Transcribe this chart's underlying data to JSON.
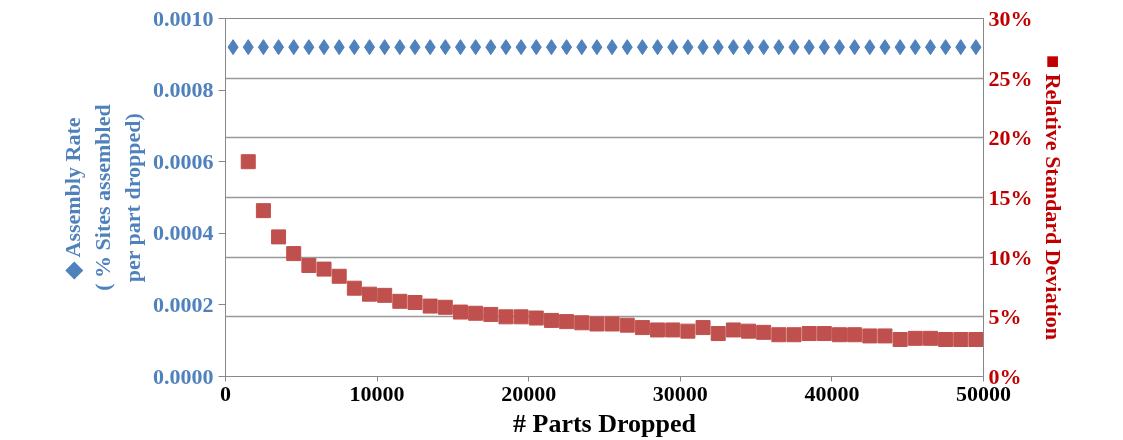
{
  "chart_data": {
    "type": "scatter",
    "xlabel": "# Parts Dropped",
    "ylabel": "◆ Assembly Rate\n( % Sites assembled\nper part dropped)",
    "y2label": "■ Relative Standard Deviation",
    "xlim": [
      0,
      50000
    ],
    "xticks": [
      0,
      10000,
      20000,
      30000,
      40000,
      50000
    ],
    "ylim": [
      0,
      0.001
    ],
    "yticks": [
      {
        "value": 0,
        "label": "0.0000"
      },
      {
        "value": 0.0002,
        "label": "0.0002"
      },
      {
        "value": 0.0004,
        "label": "0.0004"
      },
      {
        "value": 0.0006,
        "label": "0.0006"
      },
      {
        "value": 0.0008,
        "label": "0.0008"
      },
      {
        "value": 0.001,
        "label": "0.0010"
      }
    ],
    "y2lim": [
      0,
      30
    ],
    "y2ticks": [
      {
        "value": 0,
        "label": "0%"
      },
      {
        "value": 5,
        "label": "5%"
      },
      {
        "value": 10,
        "label": "10%"
      },
      {
        "value": 15,
        "label": "15%"
      },
      {
        "value": 20,
        "label": "20%"
      },
      {
        "value": 25,
        "label": "25%"
      },
      {
        "value": 30,
        "label": "30%"
      }
    ],
    "grid": "y2",
    "series": [
      {
        "color": "#4f81bd",
        "marker": "diamond",
        "x": [
          500,
          1500,
          2500,
          3500,
          4500,
          5500,
          6500,
          7500,
          8500,
          9500,
          10500,
          11500,
          12500,
          13500,
          14500,
          15500,
          16500,
          17500,
          18500,
          19500,
          20500,
          21500,
          22500,
          23500,
          24500,
          25500,
          26500,
          27500,
          28500,
          29500,
          30500,
          31500,
          32500,
          33500,
          34500,
          35500,
          36500,
          37500,
          38500,
          39500,
          40500,
          41500,
          42500,
          43500,
          44500,
          45500,
          46500,
          47500,
          48500,
          49500
        ],
        "values": [
          0.00092,
          0.00092,
          0.00092,
          0.00092,
          0.00092,
          0.00092,
          0.00092,
          0.00092,
          0.00092,
          0.00092,
          0.00092,
          0.00092,
          0.00092,
          0.00092,
          0.00092,
          0.00092,
          0.00092,
          0.00092,
          0.00092,
          0.00092,
          0.00092,
          0.00092,
          0.00092,
          0.00092,
          0.00092,
          0.00092,
          0.00092,
          0.00092,
          0.00092,
          0.00092,
          0.00092,
          0.00092,
          0.00092,
          0.00092,
          0.00092,
          0.00092,
          0.00092,
          0.00092,
          0.00092,
          0.00092,
          0.00092,
          0.00092,
          0.00092,
          0.00092,
          0.00092,
          0.00092,
          0.00092,
          0.00092,
          0.00092,
          0.00092
        ]
      },
      {
        "color": "#c0504d",
        "marker": "square",
        "axis": "y2",
        "x": [
          1500,
          2500,
          3500,
          4500,
          5500,
          6500,
          7500,
          8500,
          9500,
          10500,
          11500,
          12500,
          13500,
          14500,
          15500,
          16500,
          17500,
          18500,
          19500,
          20500,
          21500,
          22500,
          23500,
          24500,
          25500,
          26500,
          27500,
          28500,
          29500,
          30500,
          31500,
          32500,
          33500,
          34500,
          35500,
          36500,
          37500,
          38500,
          39500,
          40500,
          41500,
          42500,
          43500,
          44500,
          45500,
          46500,
          47500,
          48500,
          49500
        ],
        "values": [
          18.0,
          13.9,
          11.7,
          10.3,
          9.3,
          9.0,
          8.4,
          7.4,
          6.9,
          6.8,
          6.3,
          6.2,
          5.9,
          5.8,
          5.4,
          5.3,
          5.2,
          5.0,
          5.0,
          4.9,
          4.7,
          4.6,
          4.5,
          4.4,
          4.4,
          4.3,
          4.1,
          3.9,
          3.9,
          3.8,
          4.1,
          3.6,
          3.9,
          3.8,
          3.7,
          3.5,
          3.5,
          3.6,
          3.6,
          3.5,
          3.5,
          3.4,
          3.4,
          3.1,
          3.2,
          3.2,
          3.1,
          3.1,
          3.1
        ]
      }
    ]
  }
}
